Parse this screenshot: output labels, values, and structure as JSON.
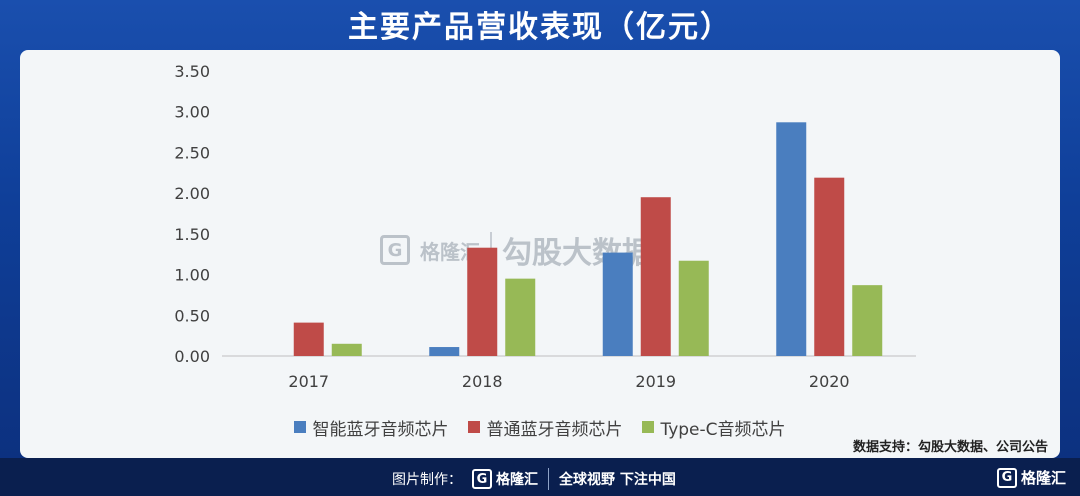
{
  "header": {
    "title": "主要产品营收表现（亿元）"
  },
  "watermark": {
    "brand": "格隆汇",
    "partner": "勾股大数据"
  },
  "source_note": "数据支持：勾股大数据、公司公告",
  "footer": {
    "credit_label": "图片制作：",
    "brand": "格隆汇",
    "slogan": "全球视野 下注中国",
    "right_brand": "格隆汇"
  },
  "colors": {
    "智能蓝牙音频芯片": "#4a7ebf",
    "普通蓝牙音频芯片": "#bf4b48",
    "Type-C音频芯片": "#97b956"
  },
  "chart_data": {
    "type": "bar",
    "title": "主要产品营收表现（亿元）",
    "categories": [
      "2017",
      "2018",
      "2019",
      "2020"
    ],
    "series": [
      {
        "name": "智能蓝牙音频芯片",
        "values": [
          0,
          0.11,
          1.27,
          2.87
        ]
      },
      {
        "name": "普通蓝牙音频芯片",
        "values": [
          0.41,
          1.33,
          1.95,
          2.19
        ]
      },
      {
        "name": "Type-C音频芯片",
        "values": [
          0.15,
          0.95,
          1.17,
          0.87
        ]
      }
    ],
    "ylim": [
      0,
      3.5
    ],
    "yticks": [
      "0.00",
      "0.50",
      "1.00",
      "1.50",
      "2.00",
      "2.50",
      "3.00",
      "3.50"
    ],
    "legend": "bottom",
    "grid": false
  }
}
